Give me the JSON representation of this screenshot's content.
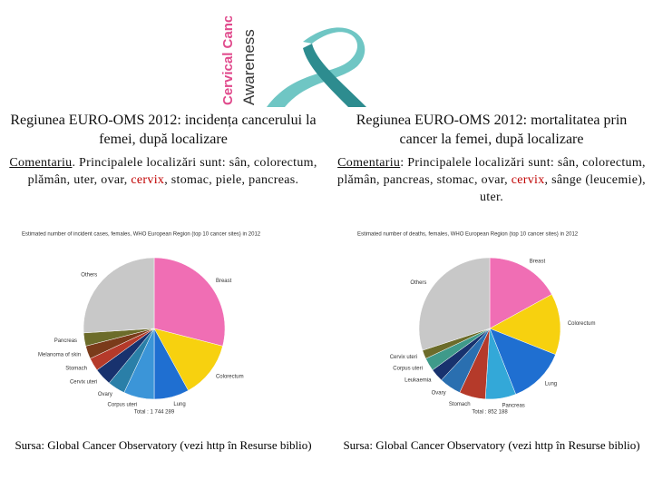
{
  "banner": {
    "line1": "Cervical Cancer",
    "line2": "Awareness"
  },
  "columns": [
    {
      "heading": "Regiunea EURO-OMS 2012: incidența cancerului la femei, după localizare",
      "comment_label": "Comentariu",
      "comment_before": ". Principalele localizări sunt: sân, colorectum, plămân, uter, ovar, ",
      "comment_highlight": "cervix",
      "comment_after": ", stomac, piele, pancreas.",
      "chart": {
        "type": "pie",
        "title": "Estimated number of incident cases, females, WHO European Region (top 10 cancer sites) in 2012",
        "categories": [
          "Breast",
          "Colorectum",
          "Lung",
          "Corpus uteri",
          "Ovary",
          "Cervix uteri",
          "Stomach",
          "Melanoma of skin",
          "Pancreas",
          "Others"
        ],
        "values": [
          29,
          13,
          8,
          7,
          4,
          4,
          3,
          3,
          3,
          26
        ],
        "colors": [
          "#f06eb4",
          "#f7d10f",
          "#1f6fd1",
          "#3b95d8",
          "#2a7fa8",
          "#18326e",
          "#b53a2a",
          "#7a3b1a",
          "#6c6c2a",
          "#c8c8c8"
        ],
        "total": "Total : 1 744 289"
      },
      "source": "Sursa: Global Cancer Observatory (vezi http în Resurse biblio)"
    },
    {
      "heading": "Regiunea EURO-OMS 2012: mortalitatea prin cancer la femei, după localizare",
      "comment_label": "Comentariu",
      "comment_before": ": Principalele localizări sunt: sân, colorectum, plămân, pancreas, stomac, ovar, ",
      "comment_highlight": "cervix",
      "comment_after": ", sânge (leucemie), uter.",
      "chart": {
        "type": "pie",
        "title": "Estimated number of deaths, females, WHO European Region (top 10 cancer sites) in 2012",
        "categories": [
          "Breast",
          "Colorectum",
          "Lung",
          "Pancreas",
          "Stomach",
          "Ovary",
          "Leukaemia",
          "Corpus uteri",
          "Cervix uteri",
          "Others"
        ],
        "values": [
          17,
          14,
          13,
          7,
          6,
          5,
          3,
          3,
          2,
          30
        ],
        "colors": [
          "#f06eb4",
          "#f7d10f",
          "#1f6fd1",
          "#33a8d8",
          "#b53a2a",
          "#2a6fb0",
          "#18326e",
          "#3f9a8a",
          "#6c6c2a",
          "#c8c8c8"
        ],
        "total": "Total : 852 188"
      },
      "source": "Sursa: Global Cancer Observatory (vezi http în Resurse biblio)"
    }
  ]
}
